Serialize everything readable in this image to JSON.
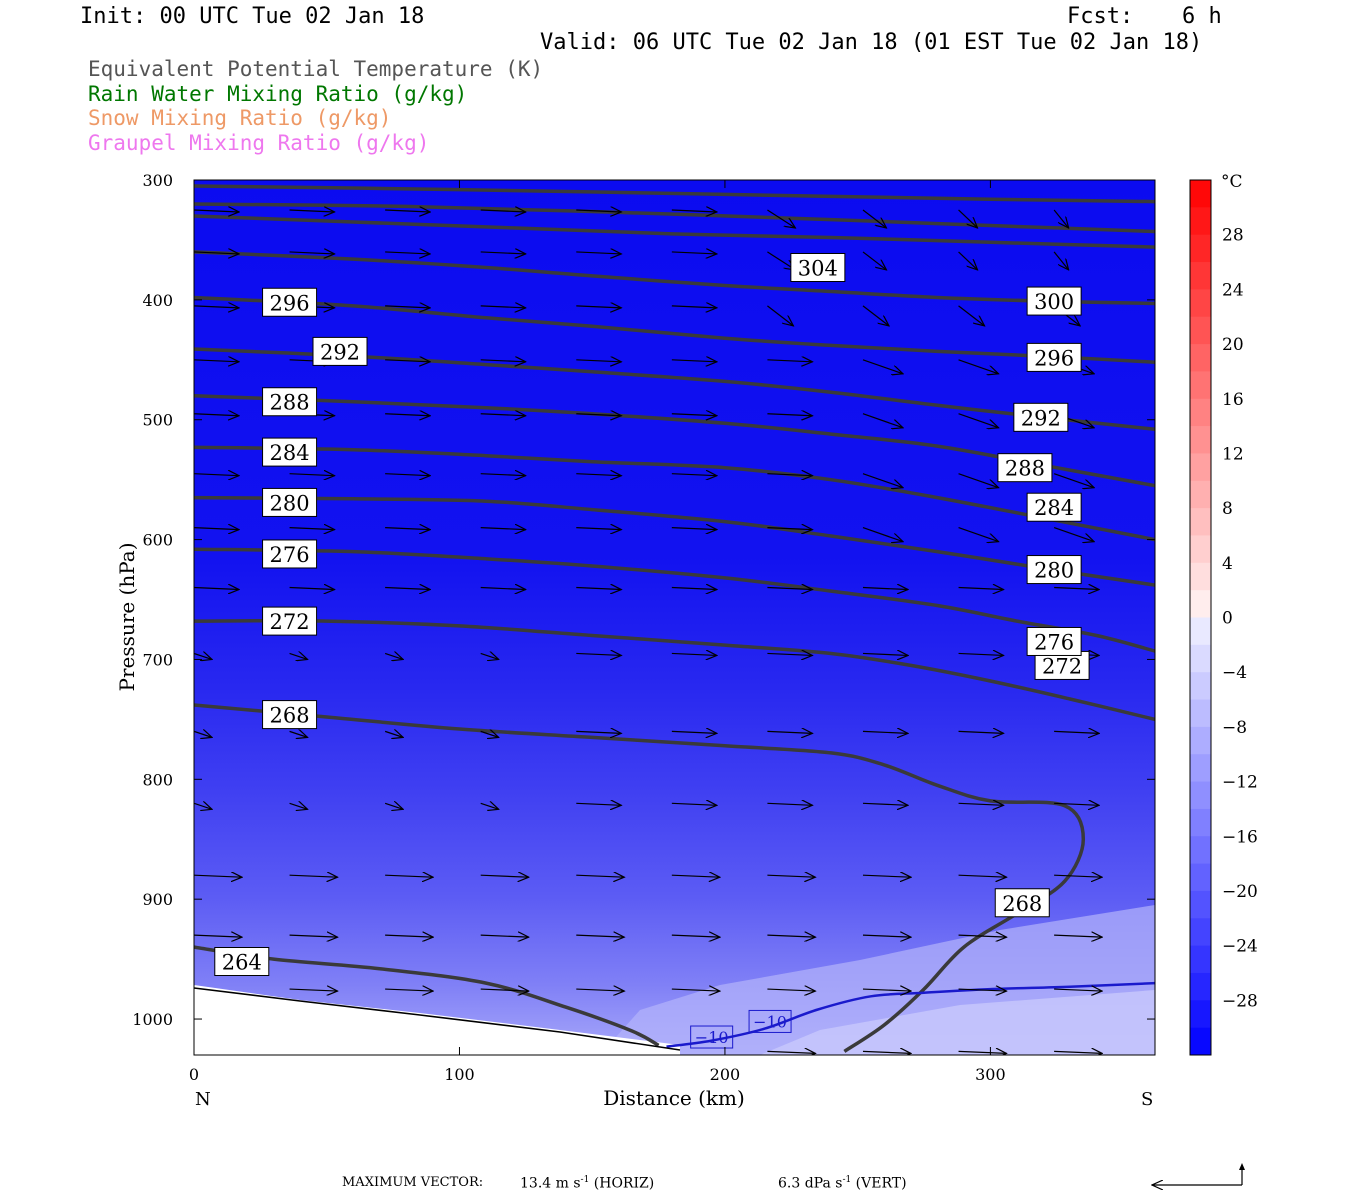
{
  "header": {
    "init": "Init: 00 UTC Tue 02 Jan 18",
    "fcst_label": "Fcst:",
    "fcst_value": "6 h",
    "valid": "Valid: 06 UTC Tue 02 Jan 18 (01 EST Tue 02 Jan 18)"
  },
  "legend": [
    {
      "label": "Equivalent Potential Temperature (K)",
      "color": "#555555"
    },
    {
      "label": "Rain Water Mixing Ratio (g/kg)",
      "color": "#007700"
    },
    {
      "label": "Snow Mixing Ratio (g/kg)",
      "color": "#ee9966"
    },
    {
      "label": "Graupel Mixing Ratio (g/kg)",
      "color": "#ee77ee"
    }
  ],
  "footer": {
    "prefix": "MAXIMUM VECTOR:",
    "horiz_value": "13.4 m s",
    "horiz_exp": "-1",
    "horiz_suffix": " (HORIZ)",
    "vert_value": "6.3 dPa s",
    "vert_exp": "-1",
    "vert_suffix": " (VERT)"
  },
  "chart_data": {
    "type": "contour-cross-section",
    "xlabel": "Distance (km)",
    "ylabel": "Pressure (hPa)",
    "x_ticks": [
      "0",
      "100",
      "200",
      "300"
    ],
    "x_tick_values": [
      0,
      100,
      200,
      300
    ],
    "xlim": [
      0,
      362
    ],
    "x_end_labels": {
      "left": "N",
      "right": "S"
    },
    "y_ticks": [
      "300",
      "400",
      "500",
      "600",
      "700",
      "800",
      "900",
      "1000"
    ],
    "y_tick_values": [
      300,
      400,
      500,
      600,
      700,
      800,
      900,
      1000
    ],
    "ylim": [
      1030,
      300
    ],
    "fill_variable": "Temperature (°C)",
    "colorbar": {
      "unit": "°C",
      "labels": [
        "28",
        "24",
        "20",
        "16",
        "12",
        "8",
        "4",
        "0",
        "−4",
        "−8",
        "−12",
        "−16",
        "−20",
        "−24",
        "−28"
      ],
      "label_values": [
        28,
        24,
        20,
        16,
        12,
        8,
        4,
        0,
        -4,
        -8,
        -12,
        -16,
        -20,
        -24,
        -28
      ],
      "min": -32,
      "max": 32,
      "interval": 2
    },
    "theta_e_contours": [
      {
        "level": "264",
        "points": [
          [
            0,
            940
          ],
          [
            30,
            950
          ],
          [
            70,
            958
          ],
          [
            110,
            970
          ],
          [
            140,
            990
          ],
          [
            165,
            1010
          ],
          [
            175,
            1022
          ]
        ],
        "labels": [
          [
            18,
            952
          ]
        ]
      },
      {
        "level": "268",
        "points": [
          [
            0,
            738
          ],
          [
            50,
            748
          ],
          [
            100,
            758
          ],
          [
            150,
            765
          ],
          [
            200,
            772
          ],
          [
            240,
            778
          ],
          [
            260,
            788
          ],
          [
            280,
            805
          ],
          [
            300,
            818
          ],
          [
            328,
            822
          ],
          [
            335,
            850
          ],
          [
            328,
            885
          ],
          [
            310,
            912
          ],
          [
            290,
            940
          ],
          [
            275,
            975
          ],
          [
            260,
            1005
          ],
          [
            245,
            1027
          ]
        ],
        "labels": [
          [
            36,
            746
          ],
          [
            312,
            903
          ]
        ]
      },
      {
        "level": "272",
        "points": [
          [
            0,
            668
          ],
          [
            50,
            668
          ],
          [
            100,
            672
          ],
          [
            150,
            680
          ],
          [
            200,
            688
          ],
          [
            240,
            695
          ],
          [
            270,
            705
          ],
          [
            300,
            718
          ],
          [
            330,
            733
          ],
          [
            362,
            750
          ]
        ],
        "labels": [
          [
            36,
            668
          ],
          [
            327,
            705
          ]
        ]
      },
      {
        "level": "276",
        "points": [
          [
            0,
            608
          ],
          [
            60,
            610
          ],
          [
            110,
            616
          ],
          [
            150,
            622
          ],
          [
            200,
            632
          ],
          [
            240,
            643
          ],
          [
            280,
            655
          ],
          [
            310,
            668
          ],
          [
            340,
            680
          ],
          [
            362,
            693
          ]
        ],
        "labels": [
          [
            36,
            612
          ],
          [
            324,
            685
          ]
        ]
      },
      {
        "level": "280",
        "points": [
          [
            0,
            565
          ],
          [
            60,
            566
          ],
          [
            110,
            568
          ],
          [
            150,
            575
          ],
          [
            200,
            585
          ],
          [
            240,
            597
          ],
          [
            280,
            610
          ],
          [
            320,
            624
          ],
          [
            362,
            638
          ]
        ],
        "labels": [
          [
            36,
            569
          ],
          [
            324,
            625
          ]
        ]
      },
      {
        "level": "284",
        "points": [
          [
            0,
            523
          ],
          [
            60,
            525
          ],
          [
            110,
            530
          ],
          [
            150,
            535
          ],
          [
            200,
            540
          ],
          [
            240,
            550
          ],
          [
            280,
            565
          ],
          [
            320,
            582
          ],
          [
            362,
            600
          ]
        ],
        "labels": [
          [
            36,
            527
          ],
          [
            324,
            573
          ]
        ]
      },
      {
        "level": "288",
        "points": [
          [
            0,
            480
          ],
          [
            60,
            485
          ],
          [
            110,
            490
          ],
          [
            150,
            495
          ],
          [
            200,
            503
          ],
          [
            240,
            512
          ],
          [
            280,
            522
          ],
          [
            320,
            538
          ],
          [
            362,
            555
          ]
        ],
        "labels": [
          [
            36,
            485
          ],
          [
            313,
            540
          ]
        ]
      },
      {
        "level": "292",
        "points": [
          [
            0,
            441
          ],
          [
            60,
            447
          ],
          [
            110,
            454
          ],
          [
            150,
            460
          ],
          [
            200,
            468
          ],
          [
            240,
            477
          ],
          [
            280,
            488
          ],
          [
            320,
            498
          ],
          [
            362,
            508
          ]
        ],
        "labels": [
          [
            55,
            443
          ],
          [
            319,
            498
          ]
        ]
      },
      {
        "level": "296",
        "points": [
          [
            0,
            398
          ],
          [
            60,
            405
          ],
          [
            110,
            415
          ],
          [
            150,
            422
          ],
          [
            200,
            432
          ],
          [
            240,
            438
          ],
          [
            280,
            443
          ],
          [
            320,
            447
          ],
          [
            362,
            452
          ]
        ],
        "labels": [
          [
            36,
            402
          ],
          [
            324,
            448
          ]
        ]
      },
      {
        "level": "300",
        "points": [
          [
            0,
            360
          ],
          [
            60,
            366
          ],
          [
            110,
            373
          ],
          [
            150,
            380
          ],
          [
            200,
            388
          ],
          [
            240,
            393
          ],
          [
            280,
            398
          ],
          [
            320,
            401
          ],
          [
            362,
            403
          ]
        ],
        "labels": [
          [
            324,
            401
          ]
        ]
      },
      {
        "level": "",
        "points": [
          [
            0,
            330
          ],
          [
            60,
            335
          ],
          [
            120,
            340
          ],
          [
            180,
            345
          ],
          [
            240,
            348
          ],
          [
            300,
            352
          ],
          [
            362,
            356
          ]
        ],
        "labels": []
      },
      {
        "level": "304",
        "points": [
          [
            0,
            320
          ],
          [
            80,
            322
          ],
          [
            160,
            327
          ],
          [
            240,
            333
          ],
          [
            300,
            338
          ],
          [
            362,
            343
          ]
        ],
        "labels": [
          [
            235,
            373
          ]
        ]
      },
      {
        "level": "",
        "points": [
          [
            0,
            305
          ],
          [
            100,
            308
          ],
          [
            200,
            312
          ],
          [
            300,
            316
          ],
          [
            362,
            318
          ]
        ],
        "labels": []
      }
    ],
    "temperature_contours": [
      {
        "level": "−10",
        "color": "#1a1acc",
        "points": [
          [
            178,
            1023
          ],
          [
            195,
            1018
          ],
          [
            215,
            1008
          ],
          [
            235,
            992
          ],
          [
            255,
            981
          ],
          [
            275,
            978
          ],
          [
            300,
            975
          ],
          [
            330,
            973
          ],
          [
            362,
            970
          ]
        ],
        "labels": [
          [
            195,
            1015
          ],
          [
            217,
            1002
          ]
        ]
      }
    ]
  }
}
